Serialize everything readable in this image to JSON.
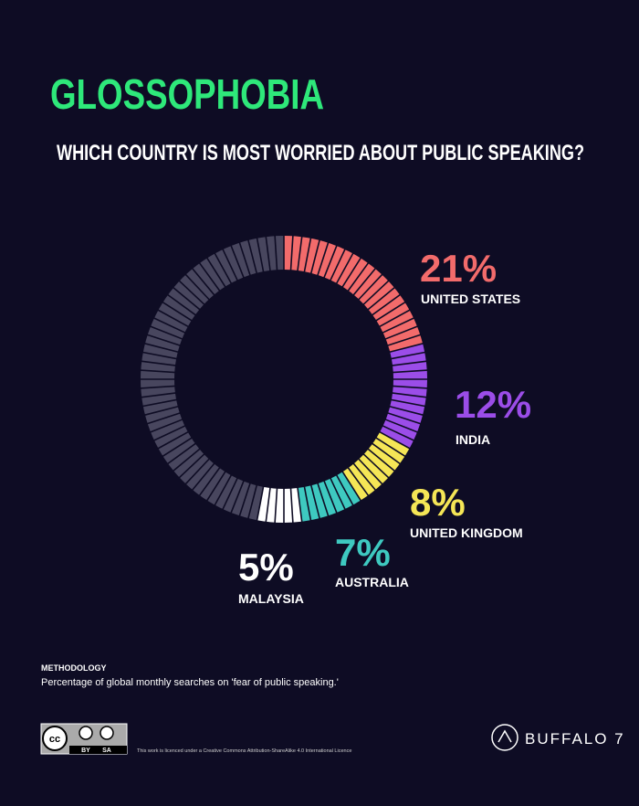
{
  "chart_data": {
    "type": "pie",
    "title": "GLOSSOPHOBIA",
    "subtitle": "WHICH COUNTRY IS MOST WORRIED ABOUT PUBLIC SPEAKING?",
    "categories": [
      "UNITED STATES",
      "INDIA",
      "UNITED KINGDOM",
      "AUSTRALIA",
      "MALAYSIA",
      null
    ],
    "values": [
      21,
      12,
      8,
      7,
      5,
      47
    ],
    "value_labels": [
      "21%",
      "12%",
      "8%",
      "7%",
      "5%",
      null
    ],
    "colors": [
      "#f26b6b",
      "#9b4de8",
      "#f5e656",
      "#3ec9c0",
      "#ffffff",
      "#48465e"
    ]
  },
  "methodology": {
    "heading": "METHODOLOGY",
    "text": "Percentage of global monthly searches on 'fear of public speaking.'"
  },
  "footer": {
    "badge_by": "BY",
    "badge_sa": "SA",
    "license": "This work is licenced under a Creative Commons Attribution-ShareAlike 4.0 International Licence",
    "brand": "BUFFALO 7"
  }
}
